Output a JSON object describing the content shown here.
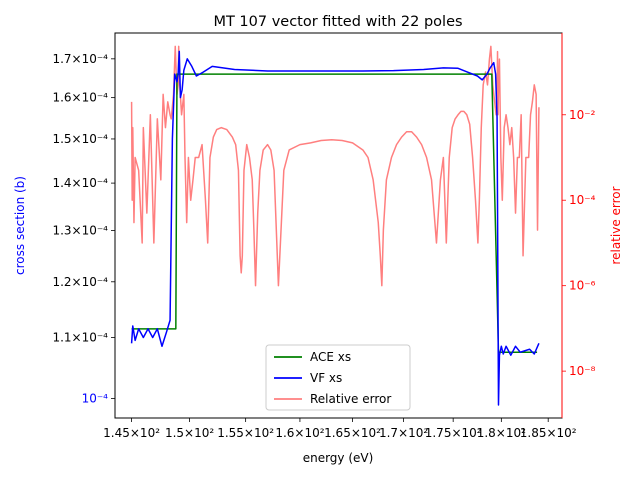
{
  "chart_data": {
    "type": "line",
    "title": "MT 107 vector fitted with 22 poles",
    "xlabel": "energy (eV)",
    "ylabel_left": "cross section (b)",
    "ylabel_right": "relative error",
    "colors": {
      "ace": "#008000",
      "vf": "#0000ff",
      "err": "#ff7f7f",
      "left_axis_label": "#0000ff",
      "right_axis": "#ff0000",
      "text": "#000000"
    },
    "x_log_scale": true,
    "xlim": [
      143.6,
      186.5
    ],
    "xticks": [
      {
        "v": 145,
        "t": "1.45×10²"
      },
      {
        "v": 150,
        "t": "1.5×10²"
      },
      {
        "v": 155,
        "t": "1.55×10²"
      },
      {
        "v": 160,
        "t": "1.6×10²"
      },
      {
        "v": 165,
        "t": "1.65×10²"
      },
      {
        "v": 170,
        "t": "1.7×10²"
      },
      {
        "v": 175,
        "t": "1.75×10²"
      },
      {
        "v": 180,
        "t": "1.8×10²"
      },
      {
        "v": 185,
        "t": "1.85×10²"
      }
    ],
    "y_left_log_scale": true,
    "ylim_left": [
      9.7e-05,
      0.000177
    ],
    "yticks_left": [
      {
        "v": 0.0001,
        "t": "10⁻⁴",
        "blue": true
      },
      {
        "v": 0.00011,
        "t": "1.1×10⁻⁴"
      },
      {
        "v": 0.00012,
        "t": "1.2×10⁻⁴"
      },
      {
        "v": 0.00013,
        "t": "1.3×10⁻⁴"
      },
      {
        "v": 0.00014,
        "t": "1.4×10⁻⁴"
      },
      {
        "v": 0.00015,
        "t": "1.5×10⁻⁴"
      },
      {
        "v": 0.00016,
        "t": "1.6×10⁻⁴"
      },
      {
        "v": 0.00017,
        "t": "1.7×10⁻⁴"
      }
    ],
    "y_right_log_scale": true,
    "ylim_right": [
      8e-10,
      0.82
    ],
    "yticks_right": [
      {
        "v": 1e-08,
        "t": "10⁻⁸"
      },
      {
        "v": 1e-06,
        "t": "10⁻⁶"
      },
      {
        "v": 0.0001,
        "t": "10⁻⁴"
      },
      {
        "v": 0.01,
        "t": "10⁻²"
      }
    ],
    "legend": {
      "placement": "lower-center",
      "items": [
        "ACE xs",
        "VF xs",
        "Relative error"
      ]
    },
    "series": [
      {
        "name": "ACE xs",
        "axis": "left",
        "x": [
          145.0,
          148.2,
          148.8,
          148.9,
          149.2,
          178.6,
          179.0,
          179.7,
          183.8
        ],
        "y": [
          0.0001115,
          0.0001115,
          0.0001115,
          0.000166,
          0.000166,
          0.000166,
          0.000166,
          0.0001075,
          0.0001075
        ]
      },
      {
        "name": "VF xs",
        "axis": "left",
        "x": [
          145.0,
          145.1,
          145.3,
          145.6,
          146.0,
          146.4,
          146.8,
          147.2,
          147.6,
          148.0,
          148.3,
          148.5,
          148.7,
          148.9,
          149.0,
          149.1,
          149.2,
          149.35,
          149.5,
          149.8,
          150.2,
          150.6,
          151.2,
          152.0,
          154.0,
          157.0,
          160.0,
          163.0,
          166.0,
          169.0,
          172.0,
          174.0,
          175.5,
          176.5,
          177.5,
          178.0,
          178.5,
          178.8,
          179.2,
          179.4,
          179.55,
          179.6,
          179.65,
          179.7,
          179.8,
          180.0,
          180.2,
          180.5,
          181.0,
          181.5,
          182.0,
          183.0,
          183.5,
          184.0
        ],
        "y": [
          0.000109,
          0.000112,
          0.0001095,
          0.0001115,
          0.00011,
          0.0001115,
          0.00011,
          0.0001115,
          0.0001085,
          0.000111,
          0.000113,
          0.00015,
          0.000166,
          0.000164,
          0.000166,
          0.000172,
          0.00016,
          0.000162,
          0.000167,
          0.00017,
          0.000168,
          0.0001655,
          0.0001665,
          0.000168,
          0.0001672,
          0.0001668,
          0.0001668,
          0.0001668,
          0.0001668,
          0.0001669,
          0.0001672,
          0.0001676,
          0.0001675,
          0.0001665,
          0.0001655,
          0.0001645,
          0.000166,
          0.0001675,
          0.000169,
          0.000166,
          0.000155,
          0.000135,
          0.000115,
          9.9e-05,
          0.000107,
          0.0001085,
          0.0001072,
          0.0001085,
          0.000107,
          0.0001085,
          0.0001075,
          0.000108,
          0.0001072,
          0.000109
        ]
      },
      {
        "name": "Relative error",
        "axis": "right",
        "x": [
          145.0,
          145.05,
          145.1,
          145.2,
          145.3,
          145.6,
          145.9,
          146.0,
          146.3,
          146.6,
          146.9,
          147.2,
          147.5,
          147.7,
          147.9,
          148.1,
          148.3,
          148.4,
          148.6,
          148.75,
          148.9,
          149.0,
          149.05,
          149.1,
          149.3,
          149.5,
          149.6,
          149.75,
          149.9,
          150.1,
          150.3,
          150.5,
          150.8,
          151.1,
          151.4,
          151.6,
          151.8,
          152.1,
          152.4,
          152.8,
          153.3,
          153.8,
          154.1,
          154.35,
          154.5,
          154.6,
          154.7,
          154.85,
          155.1,
          155.35,
          155.6,
          155.75,
          155.9,
          156.1,
          156.3,
          156.6,
          157.0,
          157.3,
          157.6,
          158.0,
          158.5,
          159.0,
          160.0,
          161.0,
          162.0,
          163.0,
          164.0,
          165.0,
          166.0,
          166.5,
          167.0,
          167.5,
          167.7,
          167.85,
          168.0,
          168.3,
          168.8,
          169.3,
          169.8,
          170.3,
          170.8,
          171.3,
          171.8,
          172.3,
          172.8,
          173.3,
          173.7,
          174.0,
          174.3,
          174.6,
          174.9,
          175.2,
          175.5,
          175.8,
          176.1,
          176.4,
          176.7,
          177.0,
          177.3,
          177.55,
          177.7,
          177.9,
          178.1,
          178.35,
          178.55,
          178.75,
          178.9,
          179.1,
          179.3,
          179.45,
          179.55,
          179.6,
          179.65,
          179.7,
          179.8,
          179.95,
          180.1,
          180.3,
          180.5,
          180.7,
          180.9,
          181.1,
          181.3,
          181.5,
          181.7,
          181.9,
          182.1,
          182.3,
          182.6,
          182.9,
          183.1,
          183.3,
          183.5,
          183.7,
          183.85,
          184.0
        ],
        "y": [
          0.02,
          0.0001,
          0.005,
          3e-05,
          0.001,
          0.0005,
          1e-05,
          0.005,
          5e-05,
          0.01,
          1e-05,
          0.008,
          0.0003,
          0.03,
          0.005,
          0.02,
          0.01,
          0.008,
          0.03,
          0.4,
          0.03,
          0.05,
          0.4,
          0.08,
          0.01,
          0.03,
          0.001,
          3e-05,
          0.001,
          0.0001,
          0.0003,
          0.001,
          0.001,
          0.002,
          0.0001,
          1e-05,
          0.001,
          0.003,
          0.0045,
          0.005,
          0.0045,
          0.003,
          0.002,
          0.0005,
          5e-06,
          2e-06,
          5e-06,
          0.0005,
          0.002,
          0.001,
          0.0003,
          2e-05,
          1e-06,
          5e-05,
          0.0005,
          0.0015,
          0.002,
          0.0015,
          0.0005,
          1e-06,
          0.0005,
          0.0015,
          0.002,
          0.0022,
          0.0025,
          0.0026,
          0.0025,
          0.0022,
          0.0015,
          0.001,
          0.0003,
          3e-05,
          5e-06,
          1e-06,
          2e-05,
          0.0003,
          0.001,
          0.002,
          0.003,
          0.004,
          0.004,
          0.003,
          0.002,
          0.001,
          0.0003,
          1e-05,
          0.0003,
          0.001,
          1e-05,
          0.001,
          0.005,
          0.008,
          0.01,
          0.012,
          0.012,
          0.01,
          0.006,
          0.001,
          0.0001,
          1e-05,
          0.0001,
          0.005,
          0.05,
          0.1,
          0.05,
          0.2,
          0.4,
          0.05,
          0.02,
          0.01,
          0.02,
          0.3,
          0.01,
          0.05,
          0.2,
          0.001,
          0.0001,
          0.005,
          0.01,
          0.005,
          0.002,
          0.005,
          0.001,
          5e-05,
          0.001,
          0.001,
          0.01,
          5e-06,
          0.001,
          0.001,
          0.01,
          0.02,
          0.05,
          0.03,
          2e-05,
          0.015
        ]
      }
    ]
  }
}
